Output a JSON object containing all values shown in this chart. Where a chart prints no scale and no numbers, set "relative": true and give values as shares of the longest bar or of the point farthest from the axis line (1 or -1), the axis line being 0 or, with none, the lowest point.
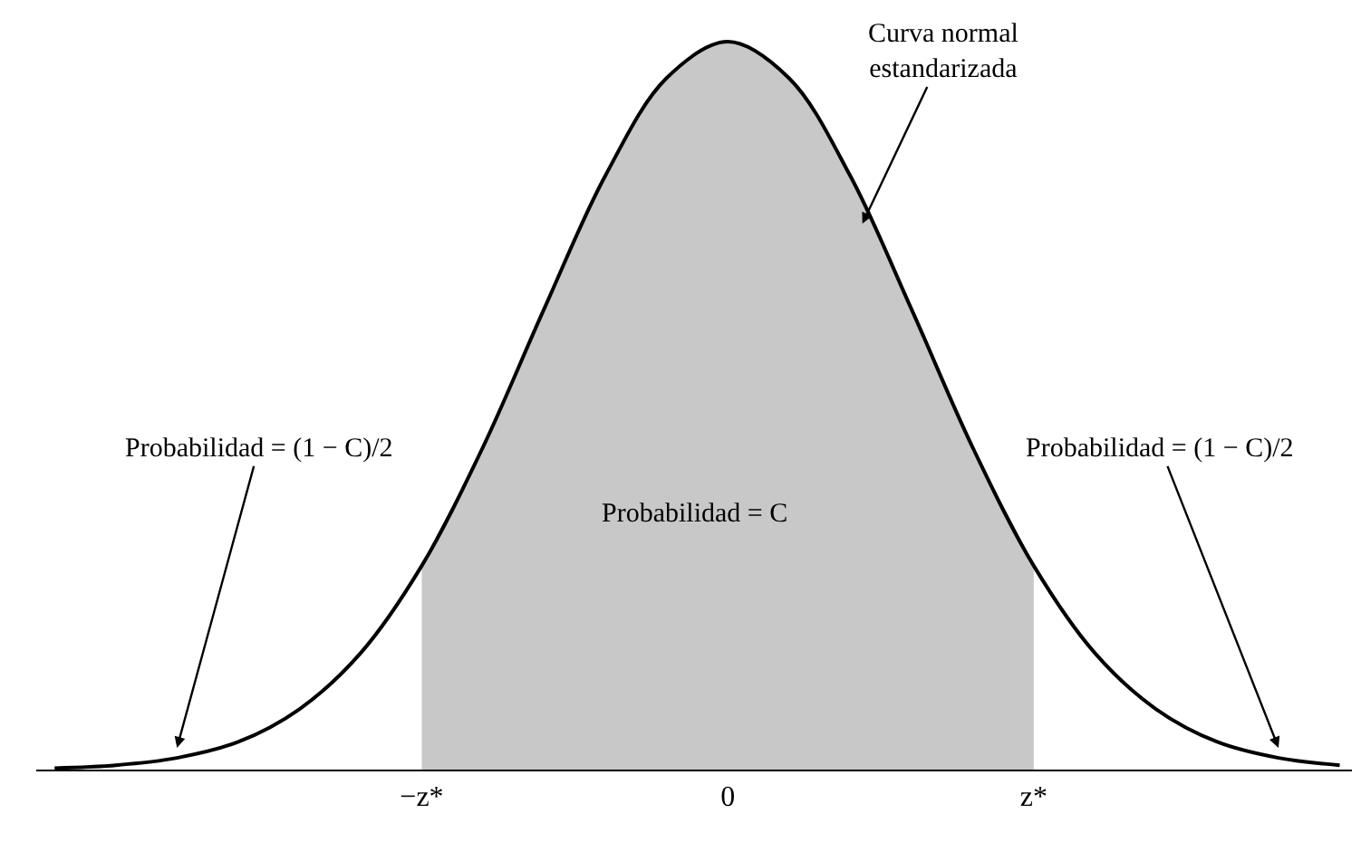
{
  "chart_data": {
    "type": "line",
    "relative": true,
    "categories": [
      null,
      null,
      null,
      null,
      null,
      null,
      "−z*",
      null,
      null,
      null,
      null,
      "0",
      null,
      null,
      null,
      null,
      "z*",
      null,
      null,
      null,
      null,
      null
    ],
    "series": [
      {
        "type": "area",
        "color": "#c8c8c8",
        "values": [
          null,
          null,
          null,
          null,
          null,
          null,
          0.28,
          0.443,
          0.633,
          0.816,
          0.95,
          1,
          0.95,
          0.816,
          0.633,
          0.443,
          0.28,
          null,
          null,
          null,
          null,
          null
        ]
      },
      {
        "color": "#000000",
        "values": [
          0.002,
          0.006,
          0.016,
          0.038,
          0.083,
          0.16,
          0.28,
          0.443,
          0.633,
          0.816,
          0.95,
          1,
          0.95,
          0.816,
          0.633,
          0.443,
          0.28,
          0.16,
          0.083,
          0.038,
          0.016,
          0.006
        ]
      }
    ],
    "annotations": [
      "Curva normal\nestandarizada",
      "Probabilidad = (1 − C)/2",
      "Probabilidad = (1 − C)/2",
      "Probabilidad = C"
    ],
    "marker": "none",
    "line_style": "solid"
  }
}
